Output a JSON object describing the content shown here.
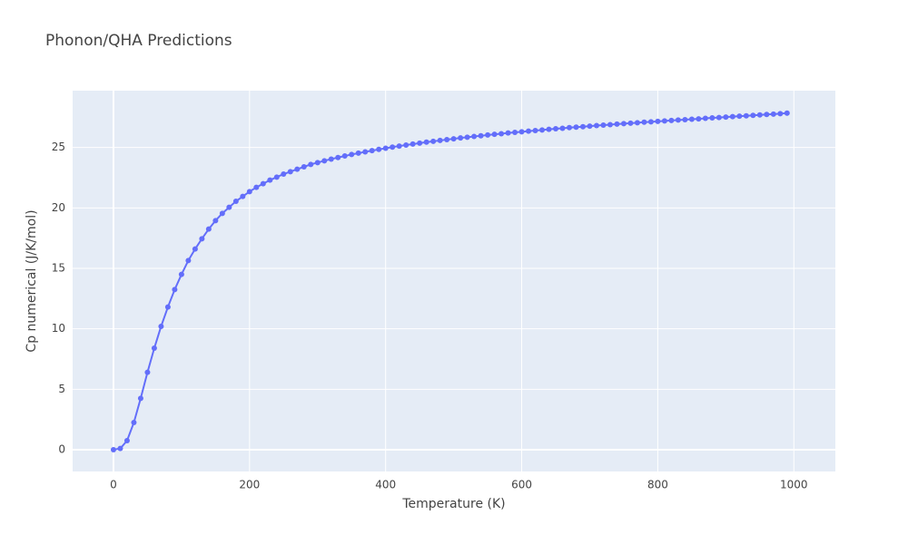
{
  "chart_data": {
    "type": "line",
    "title": "Phonon/QHA Predictions",
    "x_label": "Temperature (K)",
    "y_label": "Cp numerical (J/K/mol)",
    "x": [
      0,
      10,
      20,
      30,
      40,
      50,
      60,
      70,
      80,
      90,
      100,
      110,
      120,
      130,
      140,
      150,
      160,
      170,
      180,
      190,
      200,
      210,
      220,
      230,
      240,
      250,
      260,
      270,
      280,
      290,
      300,
      310,
      320,
      330,
      340,
      350,
      360,
      370,
      380,
      390,
      400,
      410,
      420,
      430,
      440,
      450,
      460,
      470,
      480,
      490,
      500,
      510,
      520,
      530,
      540,
      550,
      560,
      570,
      580,
      590,
      600,
      610,
      620,
      630,
      640,
      650,
      660,
      670,
      680,
      690,
      700,
      710,
      720,
      730,
      740,
      750,
      760,
      770,
      780,
      790,
      800,
      810,
      820,
      830,
      840,
      850,
      860,
      870,
      880,
      890,
      900,
      910,
      920,
      930,
      940,
      950,
      960,
      970,
      980,
      990
    ],
    "values": [
      0,
      0.1,
      0.75,
      2.25,
      4.25,
      6.4,
      8.4,
      10.2,
      11.8,
      13.25,
      14.5,
      15.65,
      16.6,
      17.45,
      18.25,
      18.95,
      19.55,
      20.05,
      20.55,
      20.95,
      21.35,
      21.7,
      22.0,
      22.3,
      22.55,
      22.8,
      23.0,
      23.2,
      23.4,
      23.6,
      23.75,
      23.9,
      24.04,
      24.17,
      24.3,
      24.42,
      24.53,
      24.64,
      24.74,
      24.84,
      24.94,
      25.03,
      25.12,
      25.2,
      25.28,
      25.36,
      25.44,
      25.51,
      25.58,
      25.65,
      25.72,
      25.79,
      25.85,
      25.91,
      25.97,
      26.03,
      26.09,
      26.14,
      26.2,
      26.25,
      26.3,
      26.35,
      26.4,
      26.45,
      26.5,
      26.55,
      26.59,
      26.64,
      26.68,
      26.72,
      26.77,
      26.81,
      26.85,
      26.89,
      26.93,
      26.97,
      27.01,
      27.05,
      27.09,
      27.12,
      27.16,
      27.2,
      27.23,
      27.27,
      27.3,
      27.34,
      27.37,
      27.41,
      27.45,
      27.48,
      27.52,
      27.55,
      27.59,
      27.62,
      27.66,
      27.69,
      27.73,
      27.76,
      27.8,
      27.84
    ],
    "color": "#636efa",
    "xlim": [
      -60,
      1061
    ],
    "ylim": [
      -1.8,
      29.7
    ],
    "xticks": [
      0,
      200,
      400,
      600,
      800,
      1000
    ],
    "yticks": [
      0,
      5,
      10,
      15,
      20,
      25
    ],
    "grid": true
  }
}
